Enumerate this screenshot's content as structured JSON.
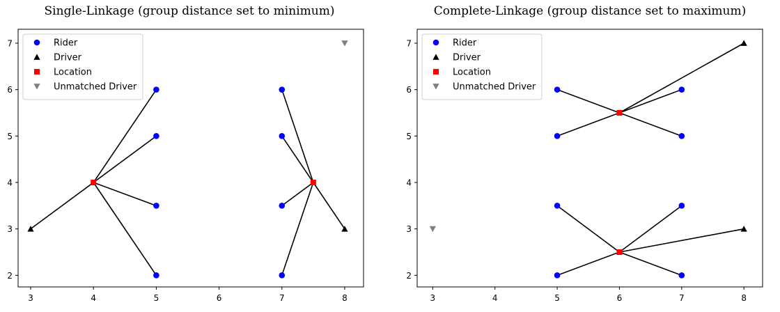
{
  "chart_data": [
    {
      "type": "scatter",
      "title": "Single-Linkage (group distance set to minimum)",
      "xlabel": "",
      "ylabel": "",
      "xlim": [
        2.8,
        8.3
      ],
      "ylim": [
        1.75,
        7.3
      ],
      "xticks": [
        3,
        4,
        5,
        6,
        7,
        8
      ],
      "yticks": [
        2,
        3,
        4,
        5,
        6,
        7
      ],
      "grid": false,
      "legend_position": "top-left",
      "legend": [
        "Rider",
        "Driver",
        "Location",
        "Unmatched Driver"
      ],
      "series": [
        {
          "name": "Rider",
          "marker": "circle",
          "color": "#0000ff",
          "x": [
            5,
            5,
            5,
            5,
            7,
            7,
            7,
            7
          ],
          "y": [
            6,
            5,
            3.5,
            2,
            6,
            5,
            3.5,
            2
          ]
        },
        {
          "name": "Driver",
          "marker": "triangle-up",
          "color": "#000000",
          "x": [
            3,
            8
          ],
          "y": [
            3,
            3
          ]
        },
        {
          "name": "Location",
          "marker": "square",
          "color": "#ff0000",
          "x": [
            4,
            7.5
          ],
          "y": [
            4,
            4
          ]
        },
        {
          "name": "Unmatched Driver",
          "marker": "triangle-down",
          "color": "#808080",
          "x": [
            8
          ],
          "y": [
            7
          ]
        }
      ],
      "segments": [
        [
          [
            3,
            3
          ],
          [
            4,
            4
          ]
        ],
        [
          [
            4,
            4
          ],
          [
            5,
            6
          ]
        ],
        [
          [
            4,
            4
          ],
          [
            5,
            5
          ]
        ],
        [
          [
            4,
            4
          ],
          [
            5,
            3.5
          ]
        ],
        [
          [
            4,
            4
          ],
          [
            5,
            2
          ]
        ],
        [
          [
            7,
            6
          ],
          [
            7.5,
            4
          ]
        ],
        [
          [
            7,
            5
          ],
          [
            7.5,
            4
          ]
        ],
        [
          [
            7,
            3.5
          ],
          [
            7.5,
            4
          ]
        ],
        [
          [
            7,
            2
          ],
          [
            7.5,
            4
          ]
        ],
        [
          [
            7.5,
            4
          ],
          [
            8,
            3
          ]
        ]
      ]
    },
    {
      "type": "scatter",
      "title": "Complete-Linkage (group distance set to maximum)",
      "xlabel": "",
      "ylabel": "",
      "xlim": [
        2.75,
        8.3
      ],
      "ylim": [
        1.75,
        7.3
      ],
      "xticks": [
        3,
        4,
        5,
        6,
        7,
        8
      ],
      "yticks": [
        2,
        3,
        4,
        5,
        6,
        7
      ],
      "grid": false,
      "legend_position": "top-left",
      "legend": [
        "Rider",
        "Driver",
        "Location",
        "Unmatched Driver"
      ],
      "series": [
        {
          "name": "Rider",
          "marker": "circle",
          "color": "#0000ff",
          "x": [
            5,
            5,
            7,
            7,
            5,
            5,
            7,
            7
          ],
          "y": [
            6,
            5,
            6,
            5,
            3.5,
            2,
            3.5,
            2
          ]
        },
        {
          "name": "Driver",
          "marker": "triangle-up",
          "color": "#000000",
          "x": [
            8,
            8
          ],
          "y": [
            7,
            3
          ]
        },
        {
          "name": "Location",
          "marker": "square",
          "color": "#ff0000",
          "x": [
            6,
            6
          ],
          "y": [
            5.5,
            2.5
          ]
        },
        {
          "name": "Unmatched Driver",
          "marker": "triangle-down",
          "color": "#808080",
          "x": [
            3
          ],
          "y": [
            3
          ]
        }
      ],
      "segments": [
        [
          [
            5,
            6
          ],
          [
            6,
            5.5
          ]
        ],
        [
          [
            5,
            5
          ],
          [
            6,
            5.5
          ]
        ],
        [
          [
            7,
            6
          ],
          [
            6,
            5.5
          ]
        ],
        [
          [
            7,
            5
          ],
          [
            6,
            5.5
          ]
        ],
        [
          [
            6,
            5.5
          ],
          [
            8,
            7
          ]
        ],
        [
          [
            5,
            3.5
          ],
          [
            6,
            2.5
          ]
        ],
        [
          [
            5,
            2
          ],
          [
            6,
            2.5
          ]
        ],
        [
          [
            7,
            3.5
          ],
          [
            6,
            2.5
          ]
        ],
        [
          [
            7,
            2
          ],
          [
            6,
            2.5
          ]
        ],
        [
          [
            6,
            2.5
          ],
          [
            8,
            3
          ]
        ]
      ]
    }
  ]
}
